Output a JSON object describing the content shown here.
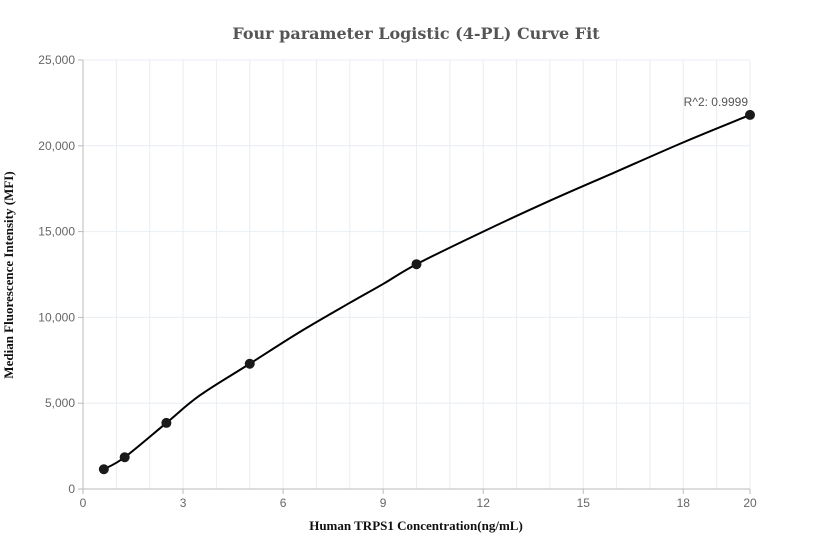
{
  "chart_data": {
    "type": "scatter",
    "title": "Four parameter Logistic (4-PL) Curve Fit",
    "xlabel": "Human TRPS1 Concentration(ng/mL)",
    "ylabel": "Median Fluorescence Intensity (MFI)",
    "xlim": [
      0,
      20
    ],
    "ylim": [
      0,
      25000
    ],
    "x_ticks": [
      0,
      3,
      6,
      9,
      12,
      15,
      18,
      20
    ],
    "x_tick_labels": [
      "0",
      "3",
      "6",
      "9",
      "12",
      "15",
      "18",
      "20"
    ],
    "y_ticks": [
      0,
      5000,
      10000,
      15000,
      20000,
      25000
    ],
    "y_tick_labels": [
      "0",
      "5,000",
      "10,000",
      "15,000",
      "20,000",
      "25,000"
    ],
    "grid": true,
    "points": [
      {
        "x": 0.625,
        "y": 1150
      },
      {
        "x": 1.25,
        "y": 1850
      },
      {
        "x": 2.5,
        "y": 3850
      },
      {
        "x": 5,
        "y": 7300
      },
      {
        "x": 10,
        "y": 13100
      },
      {
        "x": 20,
        "y": 21800
      }
    ],
    "fit_curve": [
      {
        "x": 0.625,
        "y": 1150
      },
      {
        "x": 1.25,
        "y": 1850
      },
      {
        "x": 2.5,
        "y": 3850
      },
      {
        "x": 3.5,
        "y": 5450
      },
      {
        "x": 5,
        "y": 7300
      },
      {
        "x": 6.5,
        "y": 9150
      },
      {
        "x": 8,
        "y": 10850
      },
      {
        "x": 9,
        "y": 11950
      },
      {
        "x": 10,
        "y": 13100
      },
      {
        "x": 12,
        "y": 15000
      },
      {
        "x": 14,
        "y": 16800
      },
      {
        "x": 16,
        "y": 18500
      },
      {
        "x": 18,
        "y": 20200
      },
      {
        "x": 20,
        "y": 21800
      }
    ],
    "annotation": "R^2: 0.9999",
    "colors": {
      "points": "#1a1a1a",
      "curve": "#000000",
      "grid": "#e8eef3",
      "axis": "#bbbbbb"
    }
  }
}
